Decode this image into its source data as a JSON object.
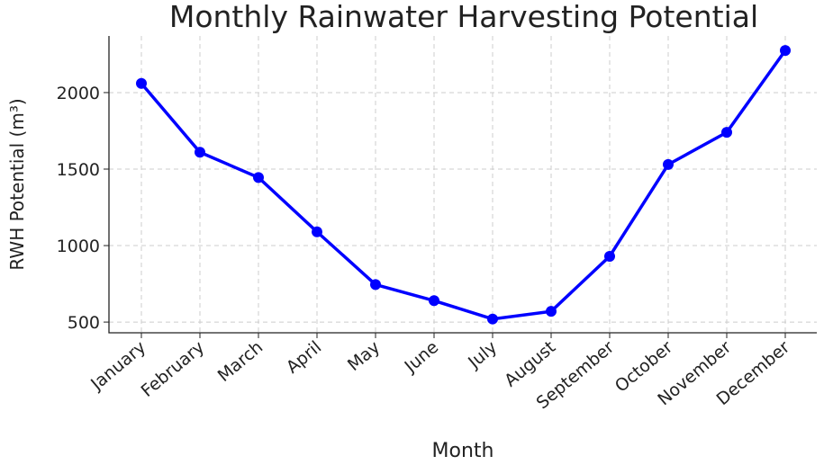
{
  "chart_data": {
    "type": "line",
    "title": "Monthly Rainwater Harvesting Potential",
    "x_label": "Month",
    "y_label": "RWH Potential (m³)",
    "categories": [
      "January",
      "February",
      "March",
      "April",
      "May",
      "June",
      "July",
      "August",
      "September",
      "October",
      "November",
      "December"
    ],
    "series": [
      {
        "name": "RWH Potential",
        "color": "#0000ff",
        "values": [
          2060,
          1610,
          1445,
          1090,
          745,
          640,
          520,
          570,
          930,
          1530,
          1740,
          2275
        ]
      }
    ],
    "ylim": [
      430,
      2370
    ],
    "yticks": [
      500,
      1000,
      1500,
      2000
    ],
    "grid": true
  }
}
